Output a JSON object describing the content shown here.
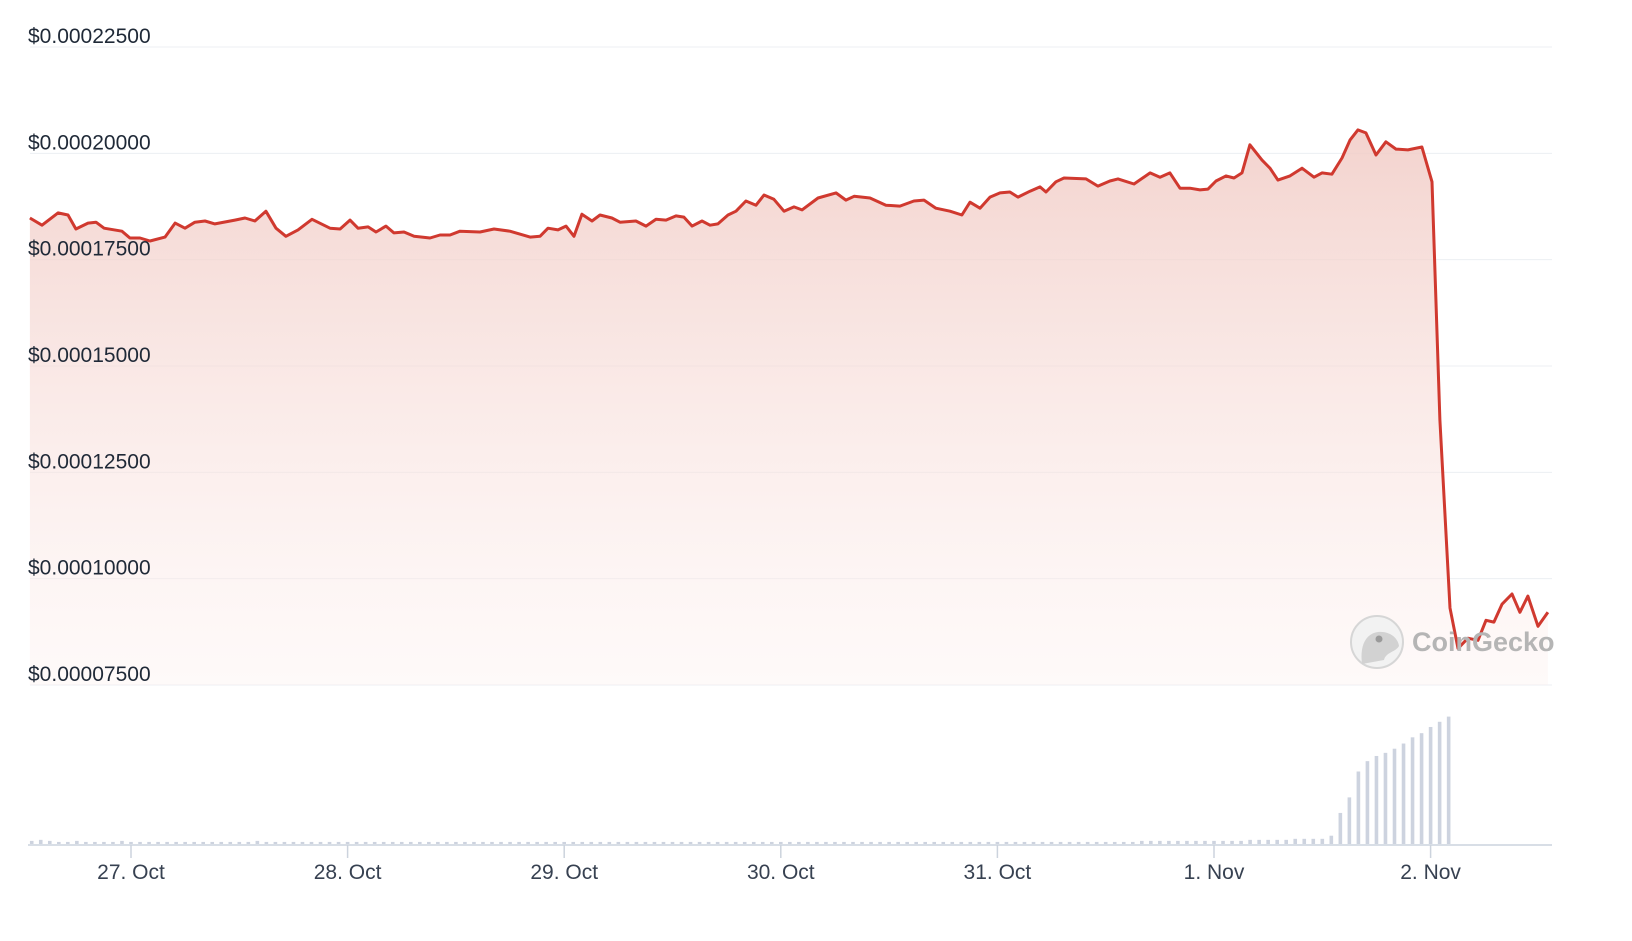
{
  "chart_data": {
    "type": "line",
    "title": "",
    "xlabel": "",
    "ylabel": "",
    "ylim": [
      7.5e-05,
      0.000225
    ],
    "grid": true,
    "legend": "none",
    "y_ticks": [
      "$0.00022500",
      "$0.00020000",
      "$0.00017500",
      "$0.00015000",
      "$0.00012500",
      "$0.00010000",
      "$0.00007500"
    ],
    "y_tick_values": [
      0.000225,
      0.0002,
      0.000175,
      0.00015,
      0.000125,
      0.0001,
      7.5e-05
    ],
    "x_ticks": [
      "27. Oct",
      "28. Oct",
      "29. Oct",
      "30. Oct",
      "31. Oct",
      "1. Nov",
      "2. Nov"
    ],
    "x_tick_times": [
      "Oct 27 00:00",
      "Oct 28 00:00",
      "Oct 29 00:00",
      "Oct 30 00:00",
      "Oct 31 00:00",
      "Nov 1 00:00",
      "Nov 2 00:00"
    ],
    "colors": {
      "line": "#d0392f",
      "fill": "#f3d2cd",
      "grid": "#eceff3",
      "volume": "#cdd3df",
      "axis": "#ccd3dd"
    },
    "watermark": "CoinGecko",
    "series": [
      {
        "x": [
          "Oct 26 12:48",
          "Oct 26 14:08",
          "Oct 26 15:55",
          "Oct 26 17:01",
          "Oct 26 17:54",
          "Oct 26 19:14",
          "Oct 26 20:07",
          "Oct 26 21:01",
          "Oct 26 23:00",
          "Oct 26 23:53",
          "Oct 27 01:00",
          "Oct 27 02:06",
          "Oct 27 03:46",
          "Oct 27 04:53",
          "Oct 27 05:59",
          "Oct 27 07:05",
          "Oct 27 08:12",
          "Oct 27 09:18",
          "Oct 27 11:31",
          "Oct 27 12:38",
          "Oct 27 13:44",
          "Oct 27 14:57",
          "Oct 27 16:04",
          "Oct 27 17:10",
          "Oct 27 18:30",
          "Oct 27 20:03",
          "Oct 27 22:03",
          "Oct 27 23:10",
          "Oct 28 00:16",
          "Oct 28 01:09",
          "Oct 28 02:16",
          "Oct 28 03:09",
          "Oct 28 04:15",
          "Oct 28 05:08",
          "Oct 28 06:15",
          "Oct 28 07:22",
          "Oct 28 09:08",
          "Oct 28 10:14",
          "Oct 28 11:21",
          "Oct 28 12:27",
          "Oct 28 14:40",
          "Oct 28 16:13",
          "Oct 28 17:59",
          "Oct 28 20:13",
          "Oct 28 21:19",
          "Oct 28 22:12",
          "Oct 28 23:19",
          "Oct 29 00:12",
          "Oct 29 01:05",
          "Oct 29 01:58",
          "Oct 29 03:05",
          "Oct 29 03:58",
          "Oct 29 05:17",
          "Oct 29 06:11",
          "Oct 29 07:57",
          "Oct 29 09:04",
          "Oct 29 10:10",
          "Oct 29 11:17",
          "Oct 29 12:23",
          "Oct 29 13:16",
          "Oct 29 14:10",
          "Oct 29 15:16",
          "Oct 29 16:09",
          "Oct 29 17:02",
          "Oct 29 18:09",
          "Oct 29 19:02",
          "Oct 29 20:08",
          "Oct 29 21:15",
          "Oct 29 22:08",
          "Oct 29 23:14",
          "Oct 30 00:21",
          "Oct 30 01:28",
          "Oct 30 02:21",
          "Oct 30 04:07",
          "Oct 30 06:07",
          "Oct 30 07:13",
          "Oct 30 08:07",
          "Oct 30 09:53",
          "Oct 30 11:39",
          "Oct 30 13:12",
          "Oct 30 14:45",
          "Oct 30 15:52",
          "Oct 30 17:11",
          "Oct 30 18:45",
          "Oct 30 20:04",
          "Oct 30 20:58",
          "Oct 30 22:04",
          "Oct 30 23:11",
          "Oct 31 00:17",
          "Oct 31 01:23",
          "Oct 31 02:17",
          "Oct 31 03:37",
          "Oct 31 04:43",
          "Oct 31 05:23",
          "Oct 31 06:29",
          "Oct 31 07:23",
          "Oct 31 09:49",
          "Oct 31 11:08",
          "Oct 31 12:28",
          "Oct 31 13:22",
          "Oct 31 15:08",
          "Oct 31 16:55",
          "Oct 31 18:01",
          "Oct 31 19:07",
          "Oct 31 20:14",
          "Oct 31 21:20",
          "Oct 31 22:27",
          "Oct 31 23:20",
          "Nov 1 00:13",
          "Nov 1 01:20",
          "Nov 1 02:13",
          "Nov 1 03:06",
          "Nov 1 03:59",
          "Nov 1 05:19",
          "Nov 1 06:12",
          "Nov 1 07:05",
          "Nov 1 08:25",
          "Nov 1 09:45",
          "Nov 1 11:05",
          "Nov 1 11:58",
          "Nov 1 13:04",
          "Nov 1 14:11",
          "Nov 1 15:04",
          "Nov 1 15:57",
          "Nov 1 16:50",
          "Nov 1 17:57",
          "Nov 1 19:03",
          "Nov 1 20:10",
          "Nov 1 21:29",
          "Nov 1 23:02",
          "Nov 2 00:09",
          "Nov 2 01:02",
          "Nov 2 02:09",
          "Nov 2 03:02",
          "Nov 2 04:08",
          "Nov 2 05:15",
          "Nov 2 06:08",
          "Nov 2 07:01",
          "Nov 2 07:55",
          "Nov 2 09:01",
          "Nov 2 09:54",
          "Nov 2 10:47",
          "Nov 2 11:54",
          "Nov 2 13:00"
        ],
        "y": [
          0.0001848,
          0.0001831,
          0.000186,
          0.0001855,
          0.0001822,
          0.0001836,
          0.0001838,
          0.0001824,
          0.0001817,
          0.0001801,
          0.0001801,
          0.0001794,
          0.0001803,
          0.0001836,
          0.0001824,
          0.0001838,
          0.0001841,
          0.0001834,
          0.0001843,
          0.0001848,
          0.0001841,
          0.0001864,
          0.0001824,
          0.0001805,
          0.000182,
          0.0001845,
          0.0001824,
          0.0001822,
          0.0001843,
          0.0001824,
          0.0001827,
          0.0001815,
          0.0001829,
          0.0001813,
          0.0001815,
          0.0001805,
          0.0001801,
          0.0001808,
          0.0001808,
          0.0001817,
          0.0001815,
          0.0001822,
          0.0001817,
          0.0001803,
          0.0001805,
          0.0001824,
          0.000182,
          0.0001829,
          0.0001805,
          0.0001857,
          0.0001841,
          0.0001855,
          0.0001848,
          0.0001838,
          0.0001841,
          0.0001829,
          0.0001845,
          0.0001843,
          0.0001853,
          0.000185,
          0.0001829,
          0.0001841,
          0.0001831,
          0.0001834,
          0.0001855,
          0.0001864,
          0.0001888,
          0.0001878,
          0.0001902,
          0.0001892,
          0.0001864,
          0.0001874,
          0.0001867,
          0.0001895,
          0.0001907,
          0.000189,
          0.0001899,
          0.0001895,
          0.0001878,
          0.0001876,
          0.0001888,
          0.000189,
          0.0001871,
          0.0001864,
          0.0001855,
          0.0001885,
          0.0001871,
          0.0001897,
          0.0001907,
          0.0001909,
          0.0001897,
          0.0001911,
          0.0001921,
          0.0001909,
          0.0001933,
          0.0001942,
          0.000194,
          0.0001923,
          0.0001935,
          0.000194,
          0.0001928,
          0.0001954,
          0.0001944,
          0.0001954,
          0.0001918,
          0.0001918,
          0.0001914,
          0.0001916,
          0.0001935,
          0.0001947,
          0.0001942,
          0.0001954,
          0.000202,
          0.0001984,
          0.0001965,
          0.0001937,
          0.0001947,
          0.0001965,
          0.0001944,
          0.0001954,
          0.0001951,
          0.0001989,
          0.0002031,
          0.0002055,
          0.0002048,
          0.0001996,
          0.0002027,
          0.000201,
          0.0002008,
          0.0002015,
          0.0001933,
          0.0001373,
          9.31e-05,
          8.36e-05,
          8.6e-05,
          8.55e-05,
          9.02e-05,
          8.98e-05,
          9.4e-05,
          9.64e-05,
          9.21e-05,
          9.59e-05,
          8.88e-05,
          9.21e-05
        ]
      }
    ],
    "volume_start": "Oct 26 13:00",
    "volume_interval_hours": 1,
    "volume_relative": [
      3,
      4,
      3,
      2,
      2,
      3,
      2,
      2,
      2,
      2,
      3,
      2,
      2,
      2,
      2,
      2,
      2,
      2,
      2,
      2,
      2,
      2,
      2,
      2,
      2,
      3,
      2,
      2,
      2,
      2,
      2,
      2,
      2,
      2,
      2,
      2,
      2,
      2,
      2,
      2,
      2,
      2,
      2,
      2,
      2,
      2,
      2,
      2,
      2,
      2,
      2,
      2,
      2,
      2,
      2,
      2,
      2,
      2,
      2,
      2,
      2,
      2,
      2,
      2,
      2,
      2,
      2,
      2,
      2,
      2,
      2,
      2,
      2,
      2,
      2,
      2,
      2,
      2,
      2,
      2,
      2,
      2,
      2,
      2,
      2,
      2,
      2,
      2,
      2,
      2,
      2,
      2,
      2,
      2,
      2,
      2,
      2,
      2,
      2,
      2,
      2,
      2,
      2,
      2,
      2,
      2,
      2,
      2,
      2,
      2,
      2,
      2,
      2,
      2,
      2,
      2,
      2,
      2,
      2,
      2,
      2,
      2,
      2,
      3,
      3,
      3,
      3,
      3,
      3,
      3,
      3,
      3,
      3,
      3,
      3,
      4,
      4,
      4,
      4,
      4,
      5,
      5,
      5,
      5,
      8,
      30,
      45,
      70,
      80,
      85,
      88,
      92,
      97,
      103,
      107,
      113,
      118,
      123
    ],
    "volume_max": 140
  }
}
